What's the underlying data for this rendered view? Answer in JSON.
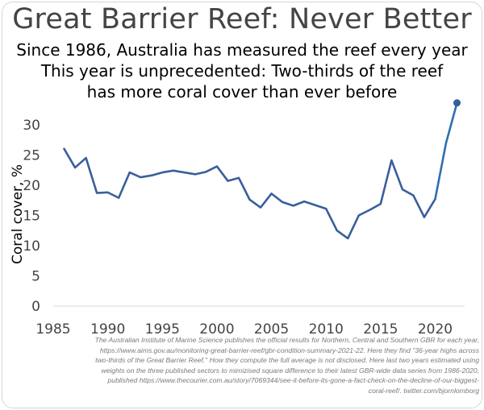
{
  "chart_data": {
    "type": "line",
    "title": "Great Barrier Reef: Never Better",
    "subtitle": [
      "Since 1986, Australia has measured the reef every year",
      "This year is unprecedented: Two-thirds of the reef",
      "has more coral cover than ever before"
    ],
    "xlabel": "",
    "ylabel": "Coral cover, %",
    "xlim": [
      1985,
      2022.7
    ],
    "ylim": [
      0,
      32.5
    ],
    "xticks": [
      "1985",
      "1990",
      "1995",
      "2000",
      "2005",
      "2010",
      "2015",
      "2020"
    ],
    "yticks": [
      "0",
      "5",
      "10",
      "15",
      "20",
      "25",
      "30"
    ],
    "grid": false,
    "colors": {
      "line": "#3a5f9c",
      "highlight": "#2f6fae",
      "marker": "#2f5f9e"
    },
    "series": [
      {
        "x": [
          1986,
          1987,
          1988,
          1989,
          1990,
          1991,
          1992,
          1993,
          1994,
          1995,
          1996,
          1997,
          1998,
          1999,
          2000,
          2001,
          2002,
          2003,
          2004,
          2005,
          2006,
          2007,
          2008,
          2009,
          2010,
          2011,
          2012,
          2013,
          2014,
          2015,
          2016,
          2017,
          2018,
          2019,
          2020,
          2021,
          2022
        ],
        "values": [
          26.0,
          22.9,
          24.5,
          18.7,
          18.8,
          17.9,
          22.1,
          21.3,
          21.6,
          22.1,
          22.4,
          22.1,
          21.8,
          22.2,
          23.1,
          20.7,
          21.2,
          17.6,
          16.3,
          18.6,
          17.2,
          16.6,
          17.3,
          16.7,
          16.1,
          12.5,
          11.2,
          15.0,
          15.9,
          16.9,
          24.1,
          19.3,
          18.3,
          14.7,
          17.7,
          27.0,
          33.6
        ]
      }
    ]
  },
  "footnote": [
    "The Australian Institute of Marine Science publishes the official results for Northern, Central and Southern GBR for each year,",
    "https://www.aims.gov.au/monitoring-great-barrier-reef/gbr-condition-summary-2021-22. Here they find \"36-year highs across",
    "two-thirds of the Great Barrier Reef.\" How they compute the full average is not disclosed. Here last two years estimated using",
    "weights on the three published sectors to mimizised square difference to their latest GBR-wide data series from 1986-2020,",
    "published https://www.thecourier.com.au/story/7069344/see-it-before-its-gone-a-fact-check-on-the-decline-of-our-biggest-",
    "coral-reef/. twitter.com/bjornlomborg"
  ]
}
